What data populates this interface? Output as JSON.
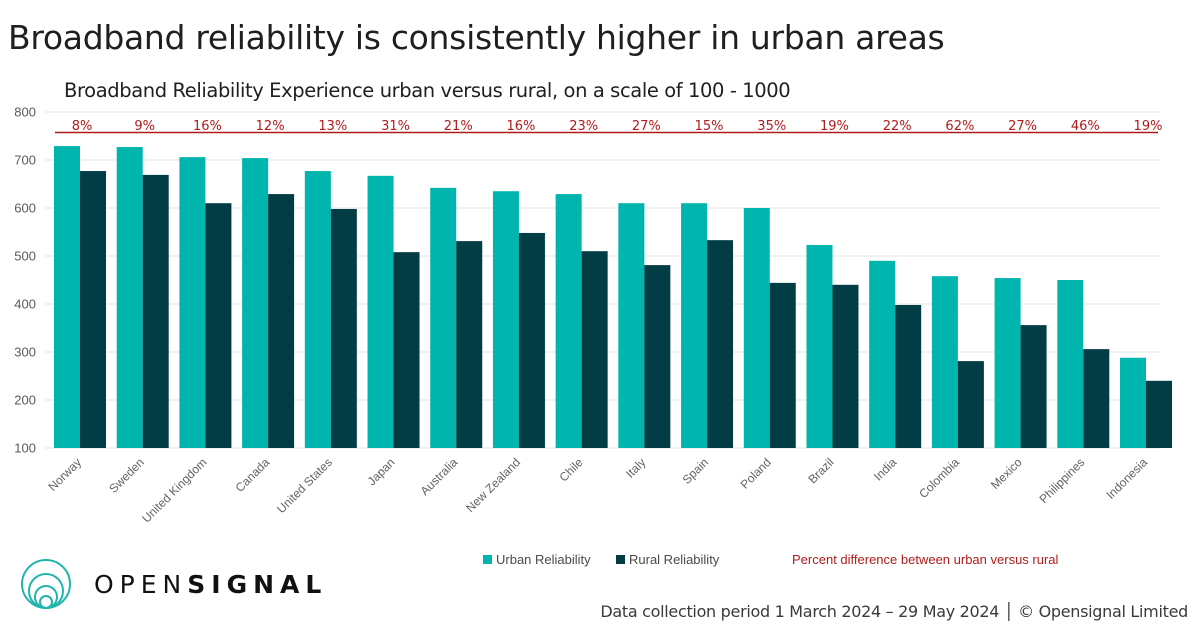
{
  "title": "Broadband reliability is consistently higher in urban areas",
  "subtitle": "Broadband Reliability Experience urban versus rural, on a scale of 100 - 1000",
  "legend": {
    "urban": "Urban Reliability",
    "rural": "Rural Reliability",
    "percent": "Percent difference between urban versus rural"
  },
  "logo": {
    "light": "OPEN",
    "bold": "SIGNAL"
  },
  "footer": "Data collection period 1 March 2024 – 29 May 2024 │ © Opensignal Limited",
  "colors": {
    "urban": "#00b5ad",
    "rural": "#023d45",
    "percent": "#b01c1c",
    "grid": "#e3e3e3"
  },
  "chart_data": {
    "type": "bar",
    "title": "Broadband Reliability Experience urban versus rural, on a scale of 100 - 1000",
    "xlabel": "",
    "ylabel": "",
    "ylim": [
      100,
      800
    ],
    "yticks": [
      100,
      200,
      300,
      400,
      500,
      600,
      700,
      800
    ],
    "grid": true,
    "legend_position": "bottom",
    "categories": [
      "Norway",
      "Sweden",
      "United Kingdom",
      "Canada",
      "United States",
      "Japan",
      "Australia",
      "New Zealand",
      "Chile",
      "Italy",
      "Spain",
      "Poland",
      "Brazil",
      "India",
      "Colombia",
      "Mexico",
      "Philippines",
      "Indonesia"
    ],
    "series": [
      {
        "name": "Urban Reliability",
        "values": [
          729,
          727,
          706,
          704,
          677,
          667,
          642,
          635,
          629,
          610,
          610,
          600,
          523,
          490,
          458,
          454,
          450,
          288
        ]
      },
      {
        "name": "Rural Reliability",
        "values": [
          677,
          669,
          610,
          629,
          598,
          508,
          531,
          548,
          510,
          481,
          533,
          444,
          440,
          398,
          281,
          356,
          306,
          240
        ]
      }
    ],
    "annotations": {
      "name": "Percent difference between urban versus rural",
      "values": [
        "8%",
        "9%",
        "16%",
        "12%",
        "13%",
        "31%",
        "21%",
        "16%",
        "23%",
        "27%",
        "15%",
        "35%",
        "19%",
        "22%",
        "62%",
        "27%",
        "46%",
        "19%"
      ]
    }
  }
}
